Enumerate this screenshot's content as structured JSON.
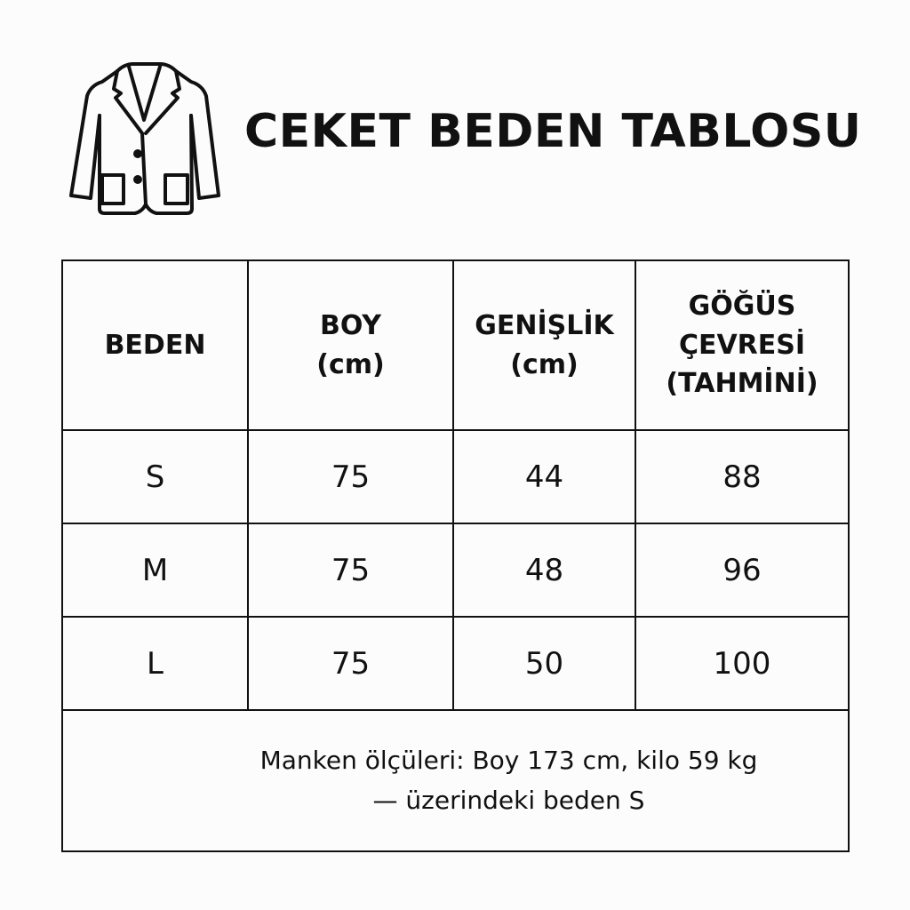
{
  "title": "CEKET BEDEN TABLOSU",
  "icon": "jacket-icon",
  "table": {
    "headers": [
      [
        "BEDEN"
      ],
      [
        "BOY",
        "(cm)"
      ],
      [
        "GENİŞLİK",
        "(cm)"
      ],
      [
        "GÖĞÜS",
        "ÇEVRESİ",
        "(TAHMİNİ)"
      ]
    ],
    "rows": [
      [
        "S",
        "75",
        "44",
        "88"
      ],
      [
        "M",
        "75",
        "48",
        "96"
      ],
      [
        "L",
        "75",
        "50",
        "100"
      ]
    ],
    "note": [
      "Manken ölçüleri: Boy 173 cm, kilo 59 kg",
      "— üzerindeki beden S"
    ]
  }
}
